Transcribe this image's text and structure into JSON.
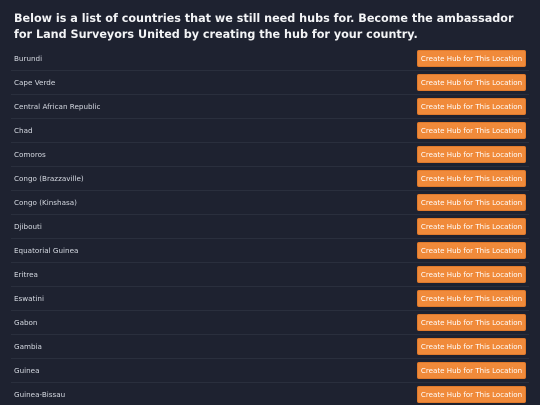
{
  "heading": "Below is a list of countries that we still need hubs for. Become the ambassador for Land Surveyors United by creating the hub for your country.",
  "button_label": "Create Hub for This Location",
  "accent_color": "#f08a3a",
  "countries": [
    "Burundi",
    "Cape Verde",
    "Central African Republic",
    "Chad",
    "Comoros",
    "Congo (Brazzaville)",
    "Congo (Kinshasa)",
    "Djibouti",
    "Equatorial Guinea",
    "Eritrea",
    "Eswatini",
    "Gabon",
    "Gambia",
    "Guinea",
    "Guinea-Bissau"
  ]
}
